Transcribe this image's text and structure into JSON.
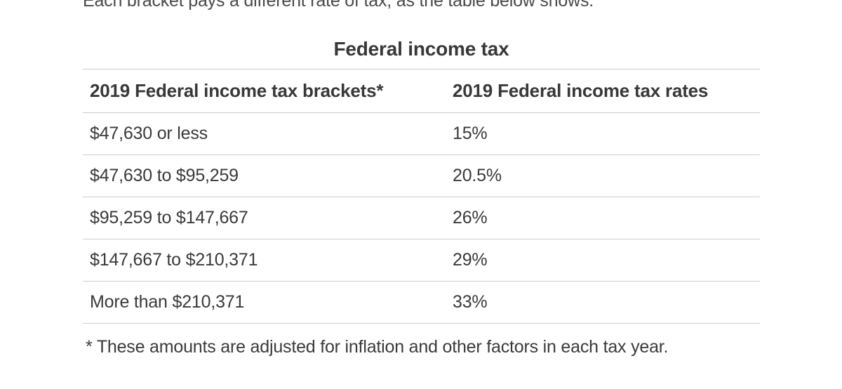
{
  "page": {
    "intro_text": "Each bracket pays a different rate of tax, as the table below shows.",
    "title": "Federal income tax",
    "footnote": "* These amounts are adjusted for inflation and other factors in each tax year."
  },
  "table": {
    "columns": [
      "2019 Federal income tax brackets*",
      "2019 Federal income tax rates"
    ],
    "rows": [
      {
        "bracket": "$47,630 or less",
        "rate": "15%"
      },
      {
        "bracket": "$47,630 to $95,259",
        "rate": "20.5%"
      },
      {
        "bracket": "$95,259 to $147,667",
        "rate": "26%"
      },
      {
        "bracket": "$147,667 to $210,371",
        "rate": "29%"
      },
      {
        "bracket": "More than $210,371",
        "rate": "33%"
      }
    ]
  },
  "colors": {
    "text": "#3a3a3a",
    "intro_text": "#4a4a4a",
    "divider": "#cdcdcd",
    "background": "#ffffff"
  }
}
